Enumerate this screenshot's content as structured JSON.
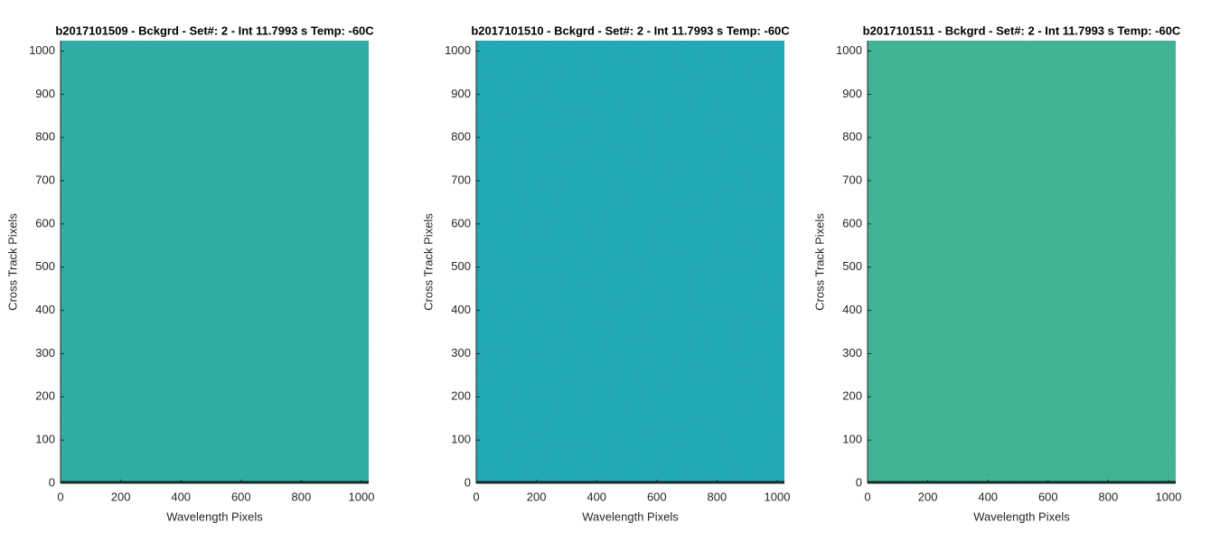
{
  "chart_data": [
    {
      "type": "heatmap",
      "title": "b2017101509 - Bckgrd - Set#: 2 - Int 11.7993 s Temp: -60C",
      "xlabel": "Wavelength Pixels",
      "ylabel": "Cross Track Pixels",
      "xlim": [
        0,
        1024
      ],
      "ylim": [
        0,
        1024
      ],
      "xticks": [
        0,
        200,
        400,
        600,
        800,
        1000
      ],
      "yticks": [
        0,
        100,
        200,
        300,
        400,
        500,
        600,
        700,
        800,
        900,
        1000
      ],
      "color": "#2ea8a2"
    },
    {
      "type": "heatmap",
      "title": "b2017101510 - Bckgrd - Set#: 2 - Int 11.7993 s Temp: -60C",
      "xlabel": "Wavelength Pixels",
      "ylabel": "Cross Track Pixels",
      "xlim": [
        0,
        1024
      ],
      "ylim": [
        0,
        1024
      ],
      "xticks": [
        0,
        200,
        400,
        600,
        800,
        1000
      ],
      "yticks": [
        0,
        100,
        200,
        300,
        400,
        500,
        600,
        700,
        800,
        900,
        1000
      ],
      "color": "#1fa4b4"
    },
    {
      "type": "heatmap",
      "title": "b2017101511 - Bckgrd - Set#: 2 - Int 11.7993 s Temp: -60C",
      "xlabel": "Wavelength Pixels",
      "ylabel": "Cross Track Pixels",
      "xlim": [
        0,
        1024
      ],
      "ylim": [
        0,
        1024
      ],
      "xticks": [
        0,
        200,
        400,
        600,
        800,
        1000
      ],
      "yticks": [
        0,
        100,
        200,
        300,
        400,
        500,
        600,
        700,
        800,
        900,
        1000
      ],
      "color": "#3daf90"
    }
  ]
}
